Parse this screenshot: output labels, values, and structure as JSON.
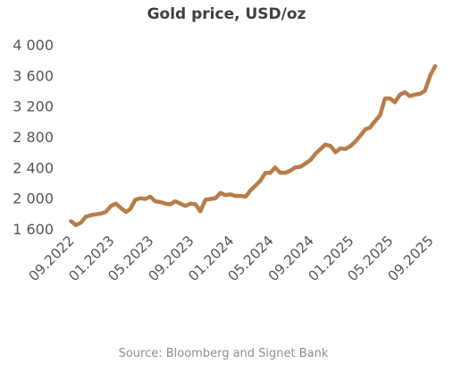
{
  "chart_data": {
    "type": "line",
    "title": "Gold price, USD/oz",
    "source": "Source: Bloomberg and Signet Bank",
    "xlabel": "",
    "ylabel": "",
    "ylim": [
      1600,
      4000
    ],
    "yticks": [
      1600,
      2000,
      2400,
      2800,
      3200,
      3600,
      4000
    ],
    "ytick_labels": [
      "1 600",
      "2 000",
      "2 400",
      "2 800",
      "3 200",
      "3 600",
      "4 000"
    ],
    "xlim": [
      "2022-09",
      "2025-09"
    ],
    "xticks": [
      "2022-09",
      "2023-01",
      "2023-05",
      "2023-09",
      "2024-01",
      "2024-05",
      "2024-09",
      "2025-01",
      "2025-05",
      "2025-09"
    ],
    "xtick_labels": [
      "09.2022",
      "01.2023",
      "05.2023",
      "09.2023",
      "01.2024",
      "05.2024",
      "09.2024",
      "01.2025",
      "05.2025",
      "09.2025"
    ],
    "grid": false,
    "legend": "none",
    "line_color": "#b87d4b",
    "series": [
      {
        "x": [
          "2022-09-05",
          "2022-09-20",
          "2022-10-05",
          "2022-10-20",
          "2022-11-05",
          "2022-11-20",
          "2022-12-05",
          "2022-12-20",
          "2023-01-05",
          "2023-01-20",
          "2023-02-05",
          "2023-02-20",
          "2023-03-05",
          "2023-03-20",
          "2023-04-05",
          "2023-04-20",
          "2023-05-05",
          "2023-05-20",
          "2023-06-05",
          "2023-06-20",
          "2023-07-05",
          "2023-07-20",
          "2023-08-05",
          "2023-08-20",
          "2023-09-05",
          "2023-09-20",
          "2023-10-05",
          "2023-10-20",
          "2023-11-05",
          "2023-11-20",
          "2023-12-05",
          "2023-12-20",
          "2024-01-05",
          "2024-01-20",
          "2024-02-05",
          "2024-02-20",
          "2024-03-05",
          "2024-03-20",
          "2024-04-05",
          "2024-04-20",
          "2024-05-05",
          "2024-05-20",
          "2024-06-05",
          "2024-06-20",
          "2024-07-05",
          "2024-07-20",
          "2024-08-05",
          "2024-08-20",
          "2024-09-05",
          "2024-09-20",
          "2024-10-05",
          "2024-10-20",
          "2024-11-05",
          "2024-11-20",
          "2024-12-05",
          "2024-12-20",
          "2025-01-05",
          "2025-01-20",
          "2025-02-05",
          "2025-02-20",
          "2025-03-05",
          "2025-03-20",
          "2025-04-05",
          "2025-04-20",
          "2025-05-05",
          "2025-05-20",
          "2025-06-05",
          "2025-06-20",
          "2025-07-05",
          "2025-07-20",
          "2025-08-05",
          "2025-08-20",
          "2025-09-05",
          "2025-09-20"
        ],
        "values": [
          1700,
          1650,
          1680,
          1760,
          1780,
          1790,
          1800,
          1820,
          1900,
          1930,
          1870,
          1820,
          1860,
          1980,
          2000,
          1990,
          2020,
          1960,
          1950,
          1930,
          1920,
          1960,
          1930,
          1900,
          1930,
          1920,
          1830,
          1980,
          1990,
          2000,
          2070,
          2040,
          2050,
          2030,
          2030,
          2020,
          2100,
          2160,
          2230,
          2330,
          2330,
          2400,
          2330,
          2330,
          2360,
          2400,
          2410,
          2450,
          2500,
          2580,
          2640,
          2700,
          2680,
          2600,
          2650,
          2640,
          2680,
          2740,
          2820,
          2900,
          2920,
          3000,
          3080,
          3300,
          3300,
          3250,
          3350,
          3380,
          3330,
          3350,
          3360,
          3400,
          3600,
          3720
        ]
      }
    ]
  }
}
